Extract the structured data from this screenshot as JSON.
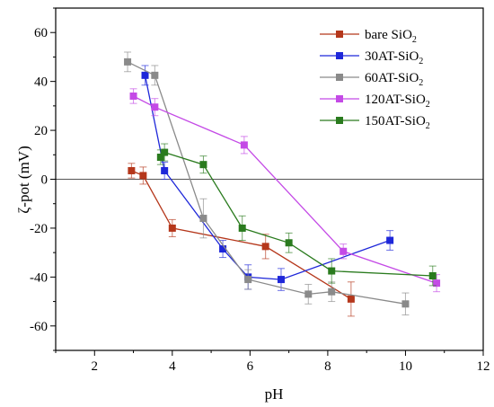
{
  "chart_data": {
    "type": "line",
    "xlabel": "pH",
    "ylabel": "ζ-pot (mV)",
    "xlim": [
      1,
      12
    ],
    "ylim": [
      -70,
      70
    ],
    "xticks": [
      2,
      4,
      6,
      8,
      10,
      12
    ],
    "yticks": [
      -60,
      -40,
      -20,
      0,
      20,
      40,
      60
    ],
    "zero_line": true,
    "legend_position": "top-right",
    "series": [
      {
        "name": "bare SiO₂",
        "legend_main": "bare SiO",
        "legend_sub": "2",
        "color": "#b5371b",
        "points": [
          {
            "x": 2.95,
            "y": 3.5,
            "err": 3
          },
          {
            "x": 3.25,
            "y": 1.5,
            "err": 3.5
          },
          {
            "x": 4.0,
            "y": -20,
            "err": 3.5
          },
          {
            "x": 6.4,
            "y": -27.5,
            "err": 5
          },
          {
            "x": 8.6,
            "y": -49,
            "err": 7
          }
        ]
      },
      {
        "name": "30AT-SiO₂",
        "legend_main": "30AT-SiO",
        "legend_sub": "2",
        "color": "#1e27d9",
        "points": [
          {
            "x": 3.3,
            "y": 42.5,
            "err": 4
          },
          {
            "x": 3.8,
            "y": 3.5,
            "err": 3.5
          },
          {
            "x": 5.3,
            "y": -28.5,
            "err": 3.5
          },
          {
            "x": 5.95,
            "y": -40,
            "err": 5
          },
          {
            "x": 6.8,
            "y": -41,
            "err": 4.5
          },
          {
            "x": 9.6,
            "y": -25,
            "err": 4
          }
        ]
      },
      {
        "name": "60AT-SiO₂",
        "legend_main": "60AT-SiO",
        "legend_sub": "2",
        "color": "#8a8a8a",
        "points": [
          {
            "x": 2.85,
            "y": 48,
            "err": 4
          },
          {
            "x": 3.55,
            "y": 42.5,
            "err": 4
          },
          {
            "x": 4.8,
            "y": -16,
            "err": 8
          },
          {
            "x": 5.95,
            "y": -41,
            "err": 4
          },
          {
            "x": 7.5,
            "y": -47,
            "err": 4
          },
          {
            "x": 8.1,
            "y": -46,
            "err": 4
          },
          {
            "x": 10.0,
            "y": -51,
            "err": 4.5
          }
        ]
      },
      {
        "name": "120AT-SiO₂",
        "legend_main": "120AT-SiO",
        "legend_sub": "2",
        "color": "#c44ae6",
        "points": [
          {
            "x": 3.0,
            "y": 34,
            "err": 3
          },
          {
            "x": 3.55,
            "y": 29.5,
            "err": 3.5
          },
          {
            "x": 5.85,
            "y": 14,
            "err": 3.5
          },
          {
            "x": 8.4,
            "y": -29.5,
            "err": 3
          },
          {
            "x": 10.8,
            "y": -42.5,
            "err": 3.5
          }
        ]
      },
      {
        "name": "150AT-SiO₂",
        "legend_main": "150AT-SiO",
        "legend_sub": "2",
        "color": "#2a7b1e",
        "points": [
          {
            "x": 3.7,
            "y": 9,
            "err": 3
          },
          {
            "x": 3.8,
            "y": 11,
            "err": 3.5
          },
          {
            "x": 4.8,
            "y": 6,
            "err": 3.5
          },
          {
            "x": 5.8,
            "y": -20,
            "err": 5
          },
          {
            "x": 7.0,
            "y": -26,
            "err": 4
          },
          {
            "x": 8.1,
            "y": -37.5,
            "err": 5
          },
          {
            "x": 10.7,
            "y": -39.5,
            "err": 4
          }
        ]
      }
    ]
  }
}
